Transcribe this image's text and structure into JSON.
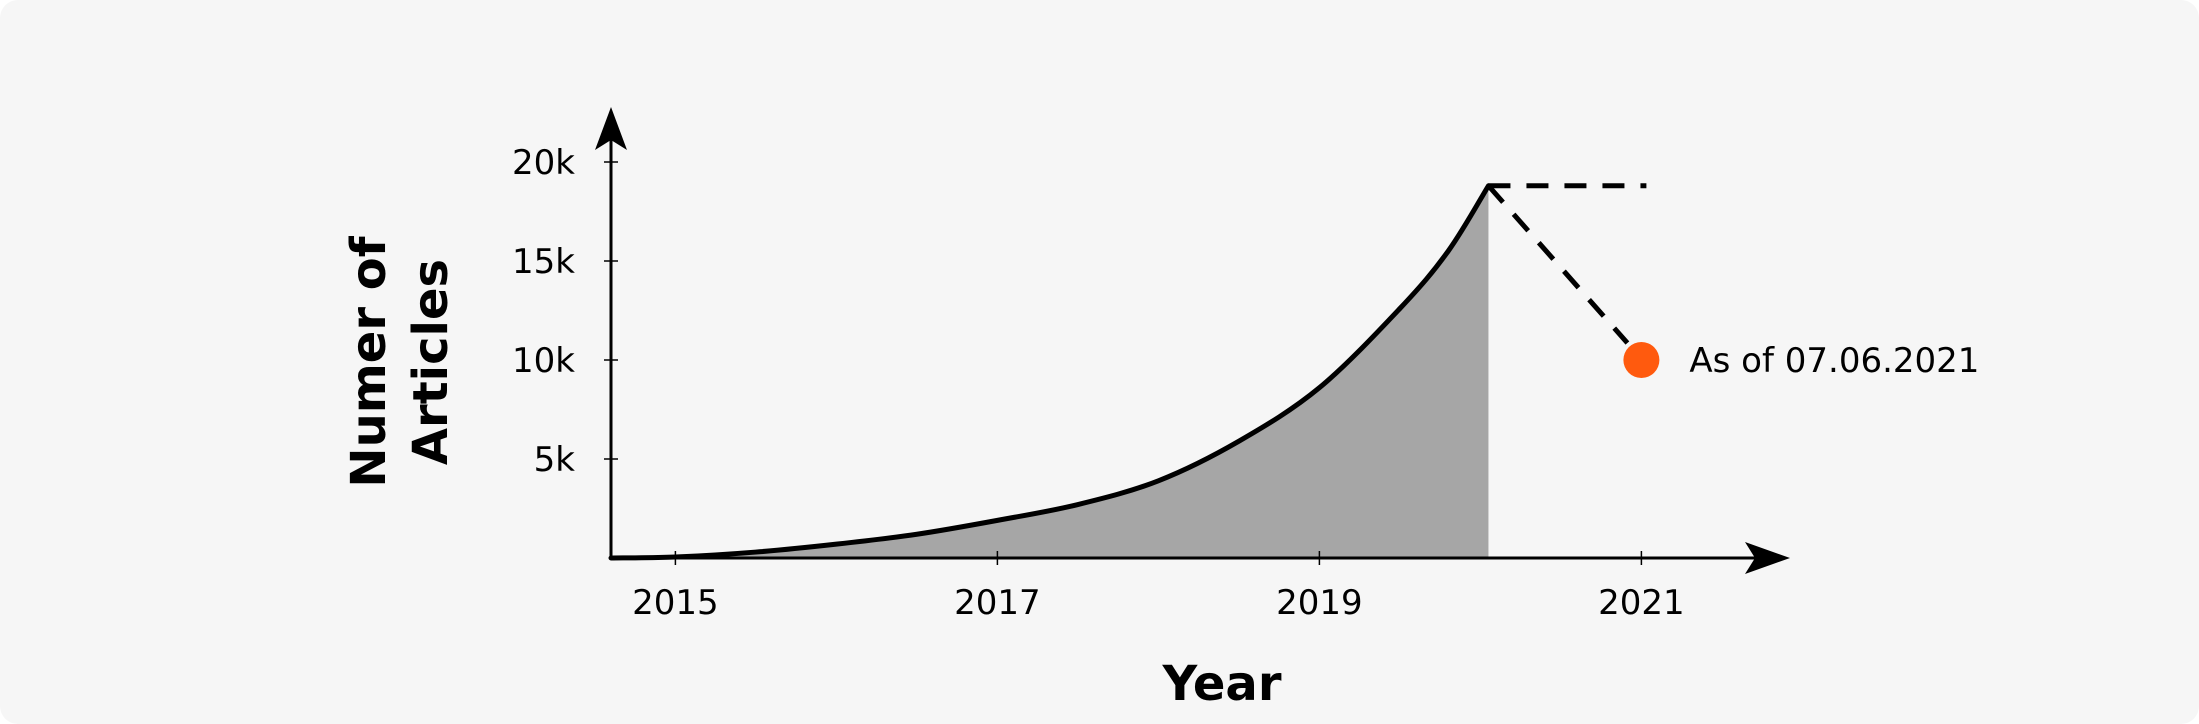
{
  "chart_data": {
    "type": "area",
    "xlabel": "Year",
    "ylabel_lines": [
      "Numer of",
      "Articles"
    ],
    "x_ticks": [
      "2015",
      "2017",
      "2019",
      "2021"
    ],
    "y_ticks": [
      "5k",
      "10k",
      "15k",
      "20k"
    ],
    "x_tick_values": [
      2015,
      2017,
      2019,
      2021
    ],
    "y_tick_values": [
      5000,
      10000,
      15000,
      20000
    ],
    "xlim": [
      2014.6,
      2021.9
    ],
    "ylim": [
      0,
      22000
    ],
    "grid": false,
    "series": [
      {
        "x": [
          2014.6,
          2015.0,
          2015.5,
          2016.0,
          2016.5,
          2017.0,
          2017.5,
          2018.0,
          2018.5,
          2019.0,
          2019.5,
          2019.8,
          2020.05
        ],
        "y": [
          0,
          50,
          300,
          700,
          1200,
          1900,
          2700,
          3900,
          5900,
          8600,
          12600,
          15500,
          18800
        ],
        "filled": true,
        "color": "#000000",
        "fill_color": "#a6a6a6"
      }
    ],
    "projection": {
      "from": {
        "x": 2020.05,
        "y": 18800
      },
      "flat_to": {
        "x": 2021.0,
        "y": 18800
      },
      "point": {
        "x": 2021.0,
        "y": 10000,
        "color": "#ff5a0e"
      },
      "label": "As of 07.06.2021"
    }
  }
}
